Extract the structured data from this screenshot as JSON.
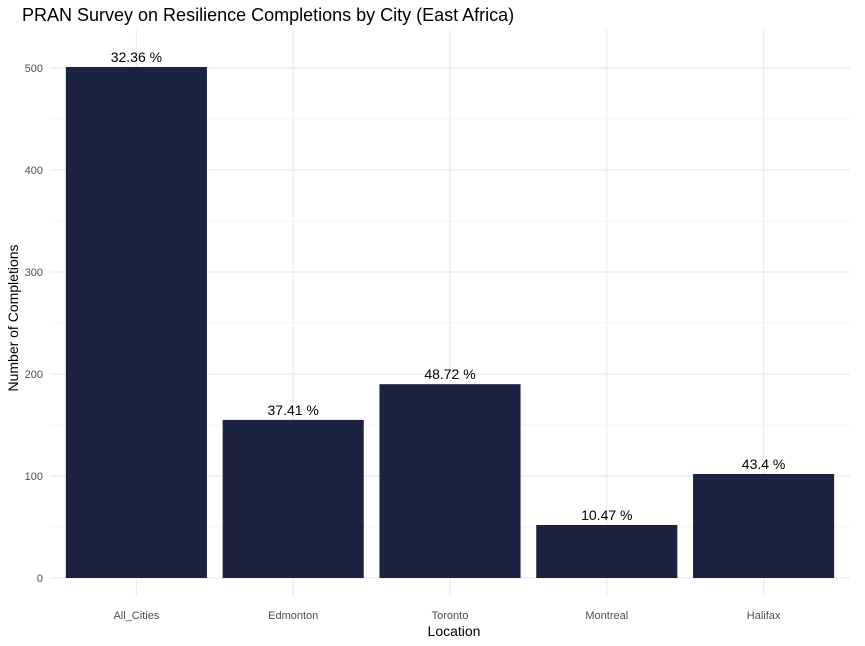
{
  "chart_data": {
    "type": "bar",
    "title": "PRAN Survey on Resilience Completions by City (East Africa)",
    "xlabel": "Location",
    "ylabel": "Number of Completions",
    "categories": [
      "All_Cities",
      "Edmonton",
      "Toronto",
      "Montreal",
      "Halifax"
    ],
    "values": [
      501,
      155,
      190,
      52,
      102
    ],
    "data_labels": [
      "32.36 %",
      "37.41 %",
      "48.72 %",
      "10.47 %",
      "43.4 %"
    ],
    "ylim": [
      0,
      540
    ],
    "yticks": [
      0,
      100,
      200,
      300,
      400,
      500
    ],
    "ytick_labels": [
      "0",
      "100",
      "200",
      "300",
      "400",
      "500"
    ],
    "grid": true,
    "bar_color": "#1c2340",
    "grid_color": "#ebebeb"
  }
}
